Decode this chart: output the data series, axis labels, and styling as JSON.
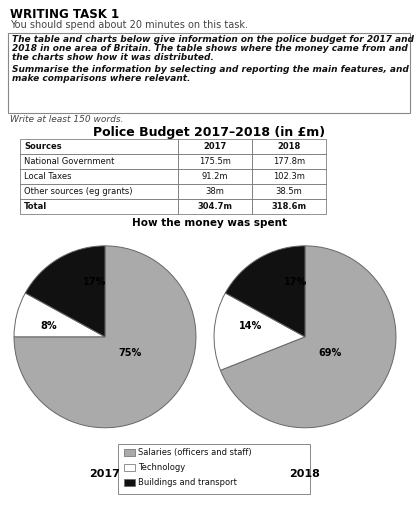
{
  "title_main": "WRITING TASK 1",
  "subtitle": "You should spend about 20 minutes on this task.",
  "task_bold_line1": "The table and charts below give information on the police budget for 2017 and",
  "task_bold_line2": "2018 in one area of Britain. The table shows where the money came from and",
  "task_bold_line3": "the charts show how it was distributed.",
  "task_sum_line1": "Summarise the information by selecting and reporting the main features, and",
  "task_sum_line2": "make comparisons where relevant.",
  "write_note": "Write at least 150 words.",
  "table_title": "Police Budget 2017–2018 (in £m)",
  "table_headers": [
    "Sources",
    "2017",
    "2018"
  ],
  "table_rows": [
    [
      "National Government",
      "175.5m",
      "177.8m"
    ],
    [
      "Local Taxes",
      "91.2m",
      "102.3m"
    ],
    [
      "Other sources (eg grants)",
      "38m",
      "38.5m"
    ],
    [
      "Total",
      "304.7m",
      "318.6m"
    ]
  ],
  "pie_title": "How the money was spent",
  "pie_2017": [
    75,
    8,
    17
  ],
  "pie_2018": [
    69,
    14,
    17
  ],
  "pie_labels_2017": [
    "75%",
    "8%",
    "17%"
  ],
  "pie_labels_2018": [
    "69%",
    "14%",
    "17%"
  ],
  "pie_colors": [
    "#aaaaaa",
    "#ffffff",
    "#111111"
  ],
  "pie_edge_color": "#666666",
  "pie_year_2017": "2017",
  "pie_year_2018": "2018",
  "legend_labels": [
    "Salaries (officers and staff)",
    "Technology",
    "Buildings and transport"
  ],
  "legend_colors": [
    "#aaaaaa",
    "#ffffff",
    "#111111"
  ],
  "bg_color": "#ffffff",
  "box_border_color": "#888888",
  "text_color_main": "#444444",
  "text_color_title": "#000000"
}
